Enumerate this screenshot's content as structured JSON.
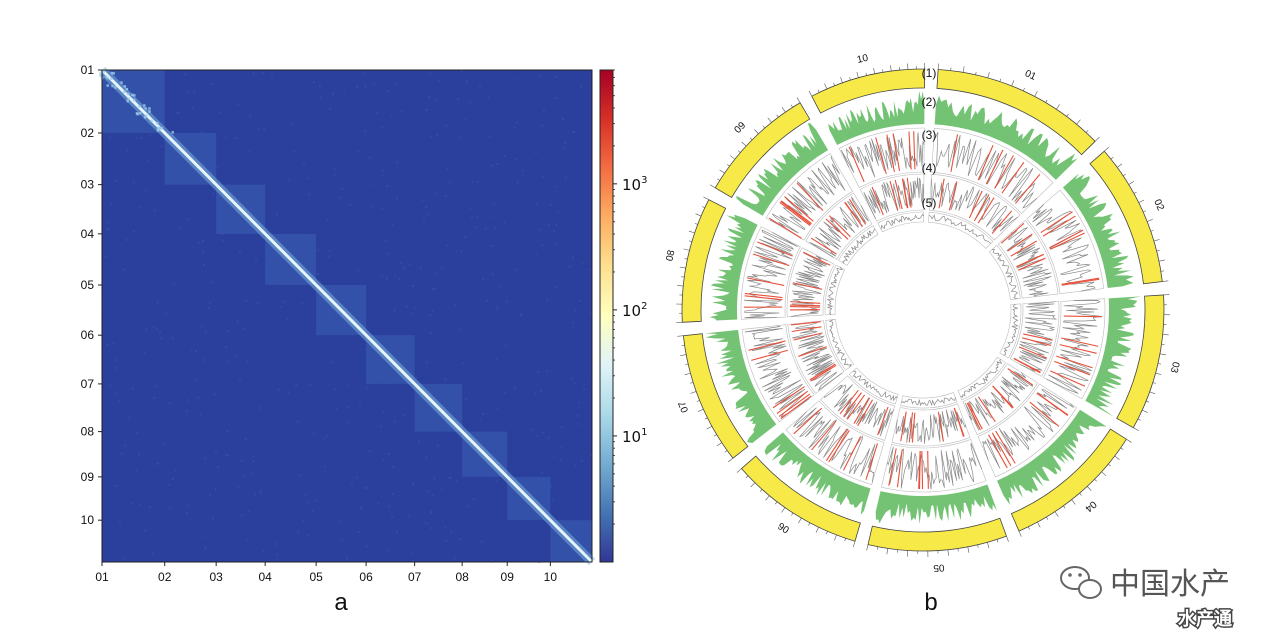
{
  "chart_data": [
    {
      "type": "heatmap",
      "panel_label": "a",
      "x_tick_labels": [
        "01",
        "02",
        "03",
        "04",
        "05",
        "06",
        "07",
        "08",
        "09",
        "10"
      ],
      "y_tick_labels": [
        "01",
        "02",
        "03",
        "04",
        "05",
        "06",
        "07",
        "08",
        "09",
        "10"
      ],
      "chromosome_lengths_relative": [
        12.8,
        10.5,
        10.0,
        10.4,
        10.2,
        9.9,
        9.7,
        9.2,
        8.8,
        8.5
      ],
      "colorbar": {
        "scale": "log",
        "range": [
          1,
          8000
        ],
        "ticks": [
          {
            "base": "10",
            "exp": "1",
            "value": 10
          },
          {
            "base": "10",
            "exp": "2",
            "value": 100
          },
          {
            "base": "10",
            "exp": "3",
            "value": 1000
          }
        ]
      },
      "colors": {
        "background": "#2b3f9c",
        "diagonal": "#e6f4fb",
        "block": "#4672c4",
        "colormap": [
          "#313695",
          "#4575b4",
          "#74add1",
          "#abd9e9",
          "#e0f3f8",
          "#ffffbf",
          "#fee090",
          "#fdae61",
          "#f46d43",
          "#d73027",
          "#a50026"
        ]
      }
    },
    {
      "type": "circos",
      "panel_label": "b",
      "track_labels": [
        "(1)",
        "(2)",
        "(3)",
        "(4)",
        "(5)"
      ],
      "chromosomes": [
        "01",
        "02",
        "03",
        "04",
        "05",
        "06",
        "07",
        "08",
        "09",
        "10"
      ],
      "chromosome_lengths_relative": [
        12.8,
        10.5,
        10.0,
        10.4,
        10.2,
        9.9,
        9.7,
        9.2,
        8.8,
        8.5
      ],
      "colors": {
        "ideogram": "#f7ea48",
        "density": "#5cb85c",
        "highlight": "#e8503a",
        "line": "#888888"
      }
    }
  ],
  "watermark": {
    "title": "中国水产",
    "subtitle": "水产通"
  }
}
